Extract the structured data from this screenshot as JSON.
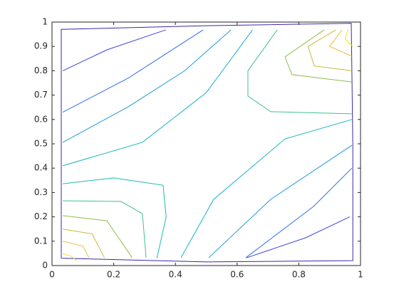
{
  "chart_data": {
    "type": "contour",
    "xlim": [
      0,
      1
    ],
    "ylim": [
      0,
      1
    ],
    "xticks": [
      0,
      0.2,
      0.4,
      0.6,
      0.8,
      1
    ],
    "yticks": [
      0,
      0.1,
      0.2,
      0.3,
      0.4,
      0.5,
      0.6,
      0.7,
      0.8,
      0.9,
      1
    ],
    "grid": false,
    "series": [
      {
        "color": "#3e26a8",
        "x": [
          0.03,
          0.03,
          0.5,
          0.97,
          0.975,
          0.975,
          0.5,
          0.03
        ],
        "y": [
          0.03,
          0.97,
          0.985,
          0.995,
          0.5,
          0.02,
          0.015,
          0.03
        ]
      },
      {
        "color": "#4145d8",
        "x": [
          0.035,
          0.178,
          0.369
        ],
        "y": [
          0.8,
          0.886,
          0.968
        ]
      },
      {
        "color": "#4145d8",
        "x": [
          0.631,
          0.822,
          0.965
        ],
        "y": [
          0.032,
          0.114,
          0.2
        ]
      },
      {
        "color": "#2f6fe8",
        "x": [
          0.035,
          0.247,
          0.49
        ],
        "y": [
          0.63,
          0.77,
          0.968
        ]
      },
      {
        "color": "#2f6fe8",
        "x": [
          0.628,
          0.848,
          0.972
        ],
        "y": [
          0.032,
          0.243,
          0.4
        ]
      },
      {
        "color": "#1a9ad8",
        "x": [
          0.035,
          0.247,
          0.43,
          0.58
        ],
        "y": [
          0.506,
          0.652,
          0.8,
          0.968
        ]
      },
      {
        "color": "#1a9ad8",
        "x": [
          0.508,
          0.709,
          0.972
        ],
        "y": [
          0.032,
          0.272,
          0.494
        ]
      },
      {
        "color": "#17b2c6",
        "x": [
          0.035,
          0.293,
          0.5,
          0.65
        ],
        "y": [
          0.41,
          0.506,
          0.71,
          0.968
        ]
      },
      {
        "color": "#17b2c6",
        "x": [
          0.418,
          0.524,
          0.755,
          0.972
        ],
        "y": [
          0.032,
          0.272,
          0.52,
          0.6
        ]
      },
      {
        "color": "#1ab9b6",
        "x": [
          0.035,
          0.2,
          0.36,
          0.37,
          0.34
        ],
        "y": [
          0.336,
          0.36,
          0.33,
          0.2,
          0.03
        ]
      },
      {
        "color": "#3dc190",
        "x": [
          0.73,
          0.635,
          0.635,
          0.709,
          0.972
        ],
        "y": [
          0.968,
          0.8,
          0.696,
          0.632,
          0.623
        ]
      },
      {
        "color": "#3dc190",
        "x": [
          0.035,
          0.224,
          0.293,
          0.305
        ],
        "y": [
          0.266,
          0.263,
          0.213,
          0.032
        ]
      },
      {
        "color": "#8dbe4c",
        "x": [
          0.882,
          0.755,
          0.778,
          0.972
        ],
        "y": [
          0.968,
          0.857,
          0.784,
          0.754
        ]
      },
      {
        "color": "#8dbe4c",
        "x": [
          0.035,
          0.178,
          0.26
        ],
        "y": [
          0.205,
          0.184,
          0.032
        ]
      },
      {
        "color": "#c8b838",
        "x": [
          0.92,
          0.83,
          0.85,
          0.972
        ],
        "y": [
          0.968,
          0.9,
          0.82,
          0.8
        ]
      },
      {
        "color": "#c8b838",
        "x": [
          0.035,
          0.13,
          0.17
        ],
        "y": [
          0.15,
          0.13,
          0.032
        ]
      },
      {
        "color": "#f0ba3a",
        "x": [
          0.94,
          0.9,
          0.972
        ],
        "y": [
          0.968,
          0.9,
          0.86
        ]
      },
      {
        "color": "#f0ba3a",
        "x": [
          0.035,
          0.1,
          0.12
        ],
        "y": [
          0.1,
          0.08,
          0.032
        ]
      },
      {
        "color": "#f8e020",
        "x": [
          0.96,
          0.95,
          0.975
        ],
        "y": [
          0.97,
          0.93,
          0.9
        ]
      },
      {
        "color": "#f8e020",
        "x": [
          0.03,
          0.06,
          0.08
        ],
        "y": [
          0.05,
          0.04,
          0.02
        ]
      }
    ]
  }
}
